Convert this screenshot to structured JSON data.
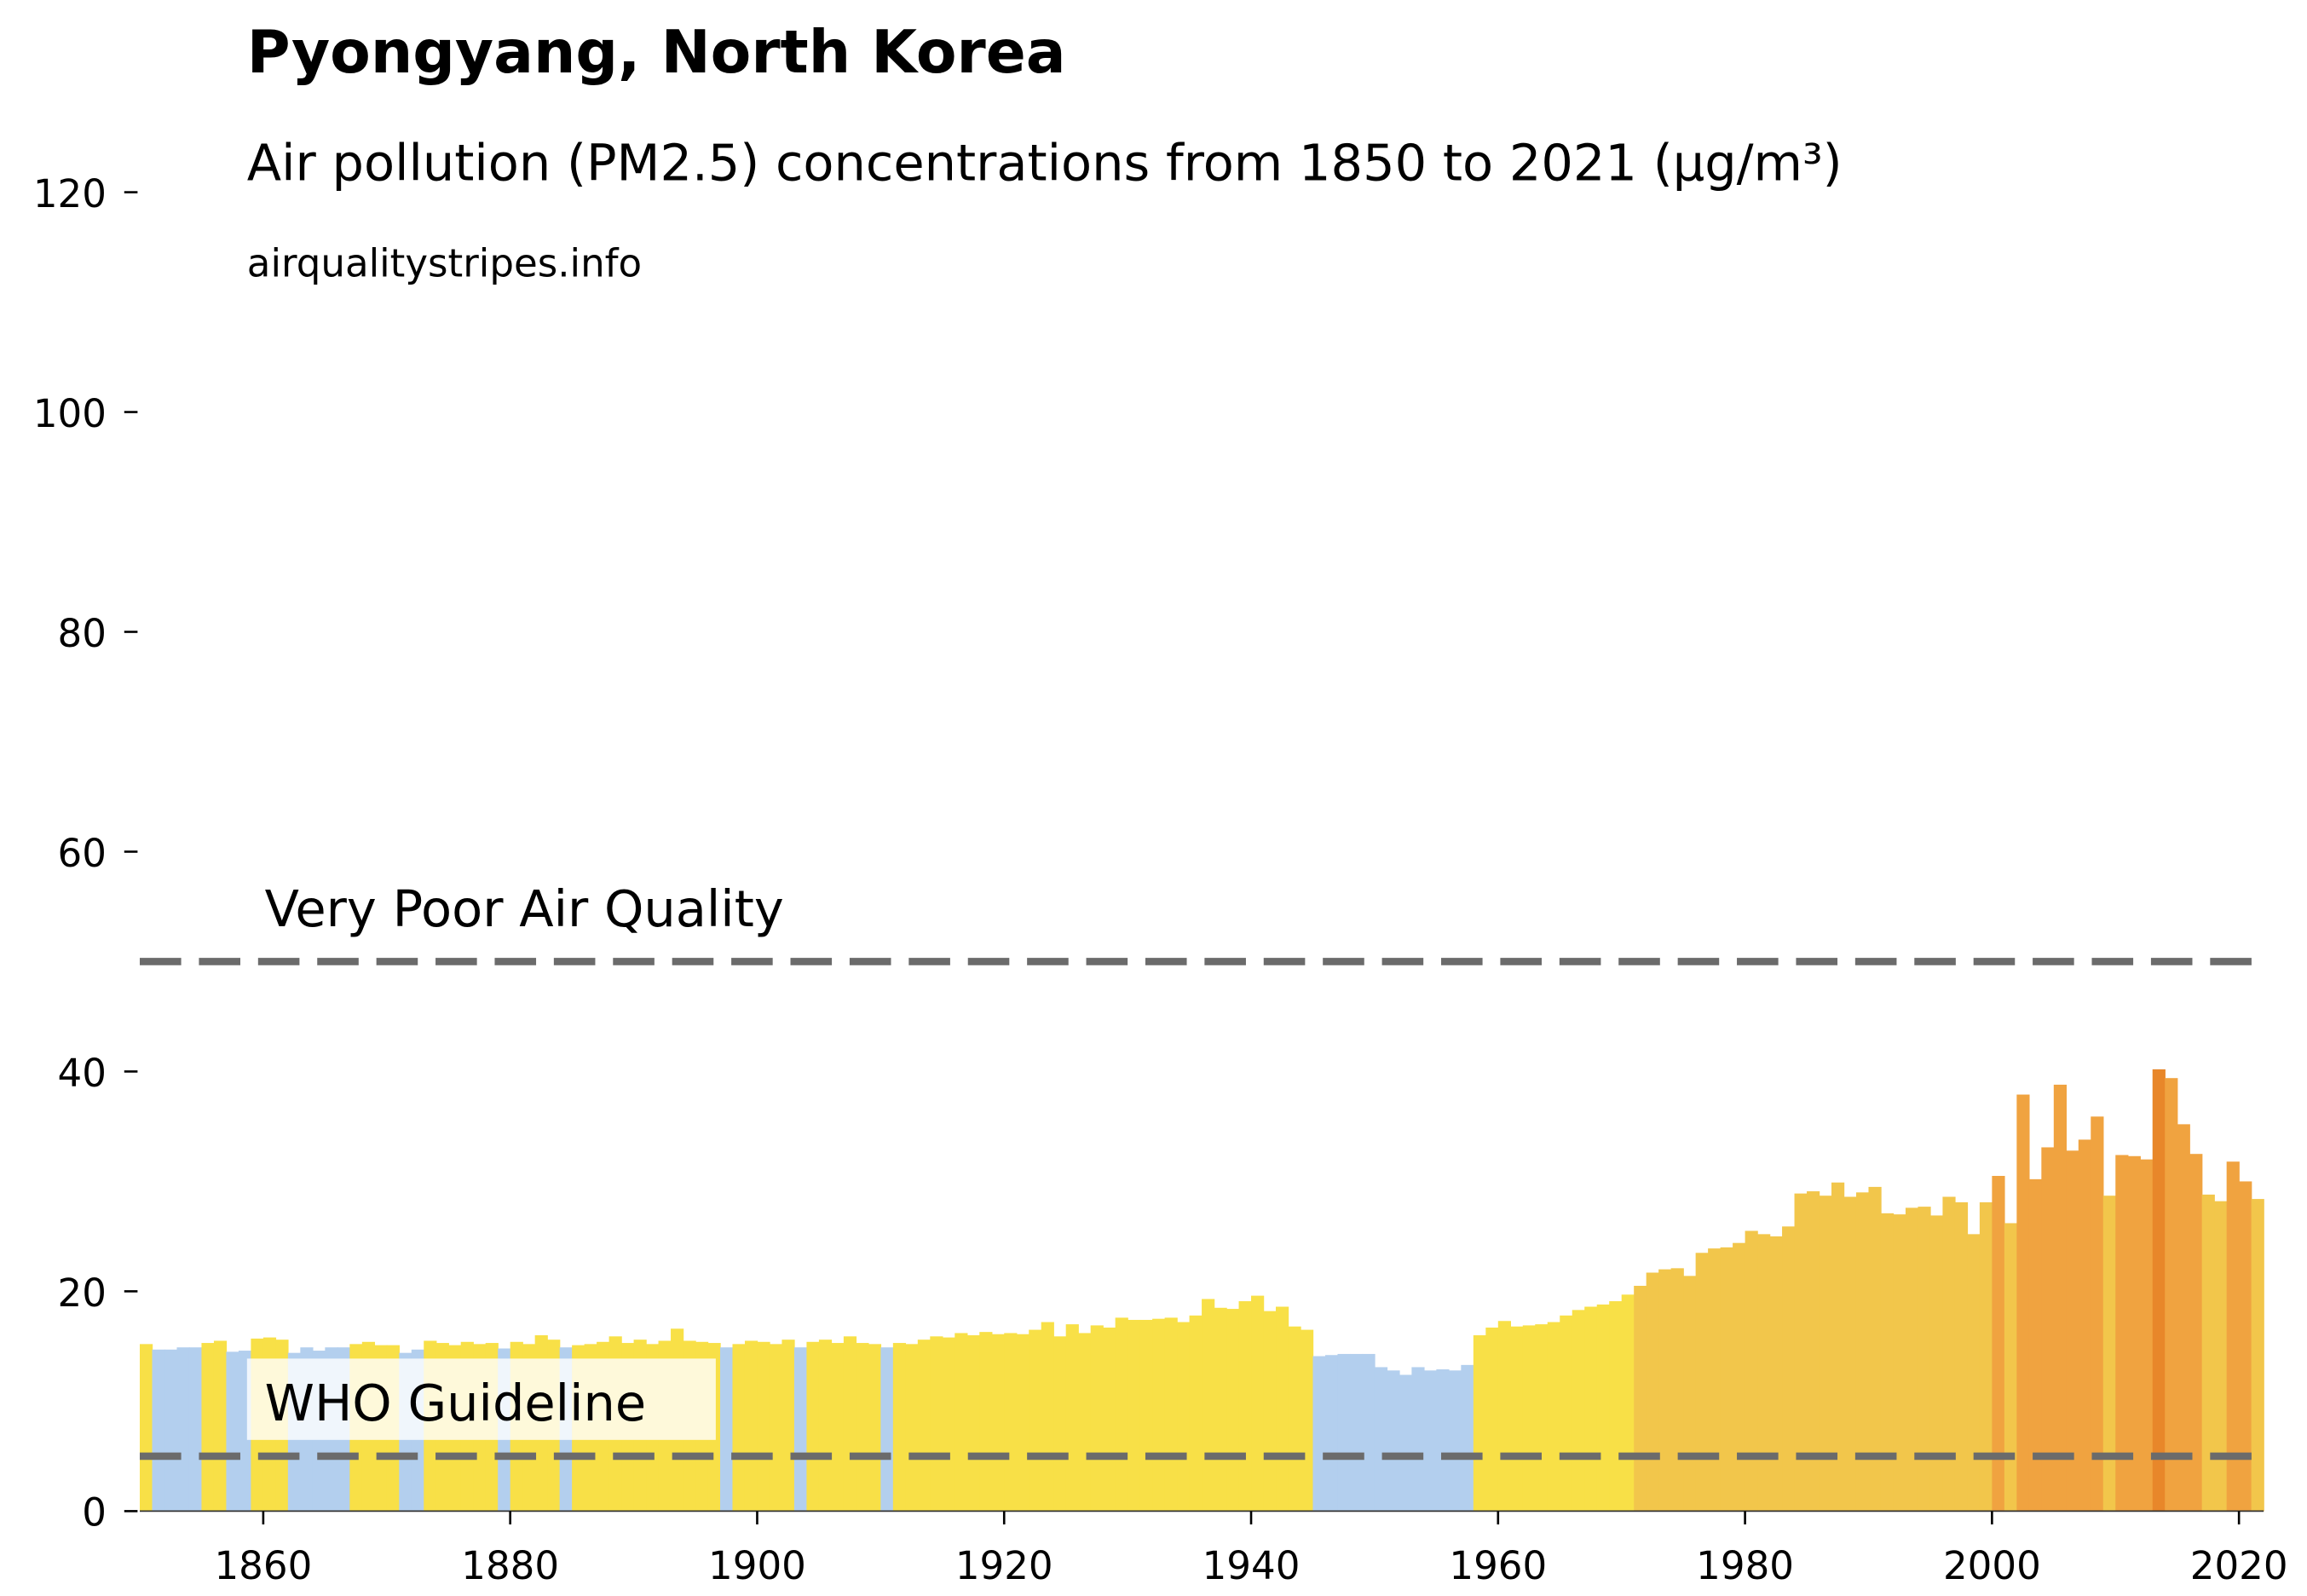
{
  "chart_data": {
    "type": "bar",
    "title": "Pyongyang, North Korea",
    "subtitle": "Air pollution (PM2.5) concentrations from 1850 to 2021 (µg/m³)",
    "source": "airqualitystripes.info",
    "x": [
      1850,
      1851,
      1852,
      1853,
      1854,
      1855,
      1856,
      1857,
      1858,
      1859,
      1860,
      1861,
      1862,
      1863,
      1864,
      1865,
      1866,
      1867,
      1868,
      1869,
      1870,
      1871,
      1872,
      1873,
      1874,
      1875,
      1876,
      1877,
      1878,
      1879,
      1880,
      1881,
      1882,
      1883,
      1884,
      1885,
      1886,
      1887,
      1888,
      1889,
      1890,
      1891,
      1892,
      1893,
      1894,
      1895,
      1896,
      1897,
      1898,
      1899,
      1900,
      1901,
      1902,
      1903,
      1904,
      1905,
      1906,
      1907,
      1908,
      1909,
      1910,
      1911,
      1912,
      1913,
      1914,
      1915,
      1916,
      1917,
      1918,
      1919,
      1920,
      1921,
      1922,
      1923,
      1924,
      1925,
      1926,
      1927,
      1928,
      1929,
      1930,
      1931,
      1932,
      1933,
      1934,
      1935,
      1936,
      1937,
      1938,
      1939,
      1940,
      1941,
      1942,
      1943,
      1944,
      1945,
      1946,
      1947,
      1948,
      1949,
      1950,
      1951,
      1952,
      1953,
      1954,
      1955,
      1956,
      1957,
      1958,
      1959,
      1960,
      1961,
      1962,
      1963,
      1964,
      1965,
      1966,
      1967,
      1968,
      1969,
      1970,
      1971,
      1972,
      1973,
      1974,
      1975,
      1976,
      1977,
      1978,
      1979,
      1980,
      1981,
      1982,
      1983,
      1984,
      1985,
      1986,
      1987,
      1988,
      1989,
      1990,
      1991,
      1992,
      1993,
      1994,
      1995,
      1996,
      1997,
      1998,
      1999,
      2000,
      2001,
      2002,
      2003,
      2004,
      2005,
      2006,
      2007,
      2008,
      2009,
      2010,
      2011,
      2012,
      2013,
      2014,
      2015,
      2016,
      2017,
      2018,
      2019,
      2020,
      2021
    ],
    "values": [
      15.2,
      14.7,
      14.7,
      14.9,
      14.9,
      15.3,
      15.5,
      14.5,
      14.6,
      15.7,
      15.8,
      15.6,
      14.4,
      14.9,
      14.6,
      14.9,
      14.9,
      15.2,
      15.4,
      15.1,
      15.1,
      14.4,
      14.7,
      15.5,
      15.3,
      15.1,
      15.4,
      15.2,
      15.3,
      14.8,
      15.4,
      15.2,
      16.0,
      15.6,
      14.9,
      15.1,
      15.2,
      15.4,
      15.9,
      15.3,
      15.6,
      15.2,
      15.5,
      16.6,
      15.5,
      15.4,
      15.3,
      14.9,
      15.2,
      15.5,
      15.4,
      15.2,
      15.6,
      14.9,
      15.4,
      15.6,
      15.3,
      15.9,
      15.3,
      15.2,
      14.9,
      15.3,
      15.2,
      15.6,
      15.9,
      15.8,
      16.2,
      16.0,
      16.3,
      16.1,
      16.2,
      16.1,
      16.5,
      17.2,
      15.9,
      17.0,
      16.2,
      16.9,
      16.7,
      17.6,
      17.4,
      17.4,
      17.5,
      17.6,
      17.2,
      17.8,
      19.3,
      18.5,
      18.4,
      19.1,
      19.6,
      18.2,
      18.6,
      16.8,
      16.5,
      14.1,
      14.2,
      14.3,
      14.3,
      14.3,
      13.1,
      12.8,
      12.4,
      13.1,
      12.8,
      12.9,
      12.8,
      13.3,
      16.0,
      16.7,
      17.3,
      16.8,
      16.9,
      17.0,
      17.2,
      17.8,
      18.3,
      18.6,
      18.8,
      19.1,
      19.7,
      20.5,
      21.7,
      22.0,
      22.1,
      21.4,
      23.5,
      23.9,
      24.0,
      24.4,
      25.5,
      25.2,
      25.0,
      25.9,
      28.9,
      29.1,
      28.7,
      29.9,
      28.6,
      29.0,
      29.5,
      27.1,
      27.0,
      27.6,
      27.7,
      26.9,
      28.6,
      28.1,
      25.2,
      28.1,
      30.5,
      26.2,
      37.9,
      30.2,
      33.1,
      38.8,
      32.8,
      33.8,
      35.9,
      28.7,
      32.4,
      32.3,
      32.0,
      40.2,
      39.4,
      35.2,
      32.5,
      28.8,
      28.2,
      31.8,
      30.0,
      28.4
    ],
    "colors": [
      "#f8e047",
      "#b3cfee",
      "#b3cfee",
      "#b3cfee",
      "#b3cfee",
      "#f8e047",
      "#f8e047",
      "#b3cfee",
      "#b3cfee",
      "#f8e047",
      "#f8e047",
      "#f8e047",
      "#b3cfee",
      "#b3cfee",
      "#b3cfee",
      "#b3cfee",
      "#b3cfee",
      "#f8e047",
      "#f8e047",
      "#f8e047",
      "#f8e047",
      "#b3cfee",
      "#b3cfee",
      "#f8e047",
      "#f8e047",
      "#f8e047",
      "#f8e047",
      "#f8e047",
      "#f8e047",
      "#b3cfee",
      "#f8e047",
      "#f8e047",
      "#f8e047",
      "#f8e047",
      "#b3cfee",
      "#f8e047",
      "#f8e047",
      "#f8e047",
      "#f8e047",
      "#f8e047",
      "#f8e047",
      "#f8e047",
      "#f8e047",
      "#f8e047",
      "#f8e047",
      "#f8e047",
      "#f8e047",
      "#b3cfee",
      "#f8e047",
      "#f8e047",
      "#f8e047",
      "#f8e047",
      "#f8e047",
      "#b3cfee",
      "#f8e047",
      "#f8e047",
      "#f8e047",
      "#f8e047",
      "#f8e047",
      "#f8e047",
      "#b3cfee",
      "#f8e047",
      "#f8e047",
      "#f8e047",
      "#f8e047",
      "#f8e047",
      "#f8e047",
      "#f8e047",
      "#f8e047",
      "#f8e047",
      "#f8e047",
      "#f8e047",
      "#f8e047",
      "#f8e047",
      "#f8e047",
      "#f8e047",
      "#f8e047",
      "#f8e047",
      "#f8e047",
      "#f8e047",
      "#f8e047",
      "#f8e047",
      "#f8e047",
      "#f8e047",
      "#f8e047",
      "#f8e047",
      "#f8e047",
      "#f8e047",
      "#f8e047",
      "#f8e047",
      "#f8e047",
      "#f8e047",
      "#f8e047",
      "#f8e047",
      "#f8e047",
      "#b3cfee",
      "#b3cfee",
      "#b3cfee",
      "#b3cfee",
      "#b3cfee",
      "#b3cfee",
      "#b3cfee",
      "#b3cfee",
      "#b3cfee",
      "#b3cfee",
      "#b3cfee",
      "#b3cfee",
      "#b3cfee",
      "#f8e047",
      "#f8e047",
      "#f8e047",
      "#f8e047",
      "#f8e047",
      "#f8e047",
      "#f8e047",
      "#f8e047",
      "#f8e047",
      "#f8e047",
      "#f8e047",
      "#f8e047",
      "#f8e047",
      "#f2c64b",
      "#f2c64b",
      "#f2c64b",
      "#f2c64b",
      "#f2c64b",
      "#f2c64b",
      "#f2c64b",
      "#f2c64b",
      "#f2c64b",
      "#f2c64b",
      "#f2c64b",
      "#f2c64b",
      "#f2c64b",
      "#f2c64b",
      "#f2c64b",
      "#f2c64b",
      "#f2c64b",
      "#f2c64b",
      "#f2c64b",
      "#f2c64b",
      "#f2c64b",
      "#f2c64b",
      "#f2c64b",
      "#f2c64b",
      "#f2c64b",
      "#f2c64b",
      "#f2c64b",
      "#f2c64b",
      "#f2c64b",
      "#f0a340",
      "#f2c64b",
      "#f0a340",
      "#f0a340",
      "#f0a340",
      "#f0a340",
      "#f0a340",
      "#f0a340",
      "#f0a340",
      "#f2c64b",
      "#f0a340",
      "#f0a340",
      "#f0a340",
      "#e8872a",
      "#f0a340",
      "#f0a340",
      "#f0a340",
      "#f2c64b",
      "#f2c64b",
      "#f0a340",
      "#f0a340",
      "#f2c64b"
    ],
    "reference_lines": [
      {
        "value": 50,
        "label": "Very Poor Air Quality",
        "color": "#6b6b6b"
      },
      {
        "value": 5,
        "label": "WHO Guideline",
        "color": "#6b6b6b"
      }
    ],
    "xlim": [
      1850,
      2022
    ],
    "ylim": [
      0,
      120
    ],
    "xticks": [
      1860,
      1880,
      1900,
      1920,
      1940,
      1960,
      1980,
      2000,
      2020
    ],
    "yticks": [
      0,
      20,
      40,
      60,
      80,
      100,
      120
    ]
  }
}
